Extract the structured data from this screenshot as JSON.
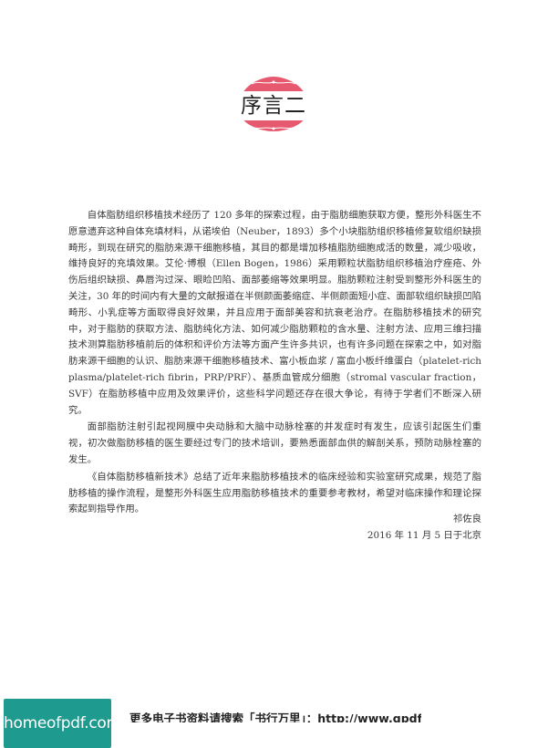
{
  "title": "序言二",
  "colors": {
    "emblem": "#e6596e",
    "watermark_bg": "#1f9a8f"
  },
  "paragraphs": [
    "自体脂肪组织移植技术经历了 120 多年的探索过程，由于脂肪细胞获取方便，整形外科医生不愿意遗弃这种自体充填材料，从诺埃伯（Neuber，1893）多个小块脂肪组织移植修复软组织缺损畸形，到现在研究的脂肪来源干细胞移植，其目的都是增加移植脂肪细胞成活的数量，减少吸收，维持良好的充填效果。艾伦·博根（Ellen Bogen，1986）采用颗粒状脂肪组织移植治疗痤疮、外伤后组织缺损、鼻唇沟过深、眼睑凹陷、面部萎缩等效果明显。脂肪颗粒注射受到整形外科医生的关注，30 年的时间内有大量的文献报道在半侧颜面萎缩症、半侧颜面短小症、面部软组织缺损凹陷畸形、小乳症等方面取得良好效果，并且应用于面部美容和抗衰老治疗。在脂肪移植技术的研究中，对于脂肪的获取方法、脂肪纯化方法、如何减少脂肪颗粒的含水量、注射方法、应用三维扫描技术测算脂肪移植前后的体积和评价方法等方面产生许多共识，也有许多问题在探索之中，如对脂肪来源干细胞的认识、脂肪来源干细胞移植技术、富小板血浆 / 富血小板纤维蛋白（platelet-rich plasma/platelet-rich fibrin，PRP/PRF）、基质血管成分细胞（stromal vascular fraction，SVF）在脂肪移植中应用及效果评价，这些科学问题还存在很大争论，有待于学者们不断深入研究。",
    "面部脂肪注射引起视网膜中央动脉和大脑中动脉栓塞的并发症时有发生，应该引起医生们重视，初次做脂肪移植的医生要经过专门的技术培训，要熟悉面部血供的解剖关系，预防动脉栓塞的发生。",
    "《自体脂肪移植新技术》总结了近年来脂肪移植技术的临床经验和实验室研究成果，规范了脂肪移植的操作流程，是整形外科医生应用脂肪移植技术的重要参考教材，希望对临床操作和理论探索起到指导作用。"
  ],
  "signature": {
    "name": "祁佐良",
    "date": "2016 年 11 月 5 日于北京"
  },
  "watermark": {
    "text": "homeofpdf.com"
  },
  "footer": {
    "text": "更多电子书资料请搜索「书行万里」：http://www.gpdf.net"
  }
}
